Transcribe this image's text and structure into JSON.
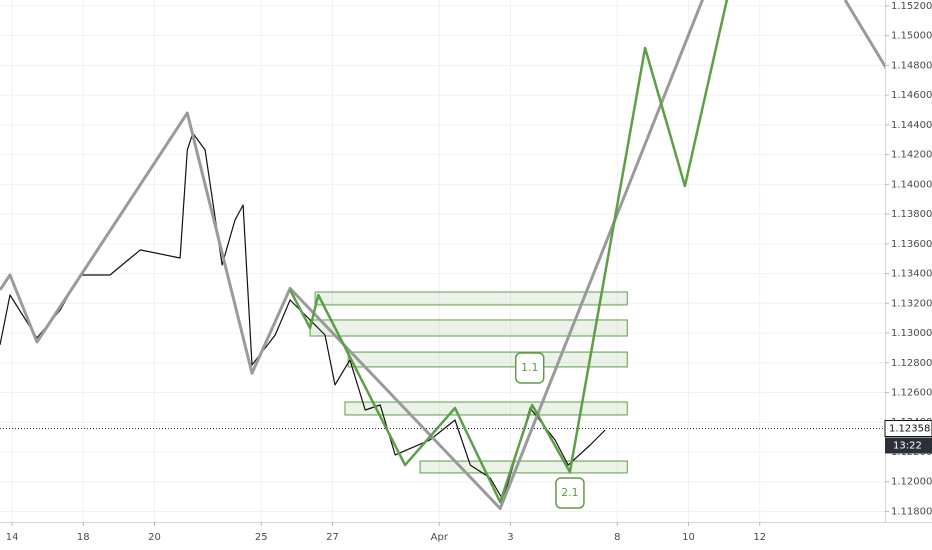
{
  "chart_data": {
    "type": "line",
    "xlim": [
      -0.34,
      24.52
    ],
    "ylim": [
      1.11729,
      1.1524
    ],
    "grid": true,
    "xticks": [
      {
        "value": 0,
        "label": "14"
      },
      {
        "value": 2,
        "label": "18"
      },
      {
        "value": 4,
        "label": "20"
      },
      {
        "value": 7,
        "label": "25"
      },
      {
        "value": 9,
        "label": "27"
      },
      {
        "value": 12,
        "label": "Apr"
      },
      {
        "value": 14,
        "label": "3"
      },
      {
        "value": 17,
        "label": "8"
      },
      {
        "value": 19,
        "label": "10"
      },
      {
        "value": 21,
        "label": "12"
      }
    ],
    "yticks": [
      {
        "value": 1.118,
        "label": "1.11800"
      },
      {
        "value": 1.12,
        "label": "1.12000"
      },
      {
        "value": 1.122,
        "label": "1.12200"
      },
      {
        "value": 1.124,
        "label": "1.12400"
      },
      {
        "value": 1.126,
        "label": "1.12600"
      },
      {
        "value": 1.128,
        "label": "1.12800"
      },
      {
        "value": 1.13,
        "label": "1.13000"
      },
      {
        "value": 1.132,
        "label": "1.13200"
      },
      {
        "value": 1.134,
        "label": "1.13400"
      },
      {
        "value": 1.136,
        "label": "1.13600"
      },
      {
        "value": 1.138,
        "label": "1.13800"
      },
      {
        "value": 1.14,
        "label": "1.14000"
      },
      {
        "value": 1.142,
        "label": "1.14200"
      },
      {
        "value": 1.144,
        "label": "1.14400"
      },
      {
        "value": 1.146,
        "label": "1.14600"
      },
      {
        "value": 1.148,
        "label": "1.14800"
      },
      {
        "value": 1.15,
        "label": "1.15000"
      },
      {
        "value": 1.152,
        "label": "1.15200"
      }
    ],
    "series": [
      {
        "color": "#111111",
        "width": 1.2,
        "x": [
          -0.34,
          -0.06,
          0.7,
          1.35,
          1.91,
          2.75,
          3.6,
          4.72,
          4.92,
          5.08,
          5.42,
          5.9,
          6.26,
          6.49,
          6.74,
          7.39,
          7.81,
          8.37,
          8.79,
          9.07,
          9.49,
          9.92,
          10.34,
          10.76,
          11.74,
          12.44,
          12.87,
          13.43,
          13.79,
          14.55,
          15.25,
          15.62,
          16.24,
          16.66
        ],
        "values": [
          1.1292,
          1.13256,
          1.12967,
          1.13155,
          1.1339,
          1.1339,
          1.13559,
          1.13505,
          1.14231,
          1.14345,
          1.14231,
          1.13458,
          1.1376,
          1.13861,
          1.12785,
          1.12987,
          1.13222,
          1.13088,
          1.12987,
          1.12651,
          1.12819,
          1.12482,
          1.12516,
          1.1218,
          1.12281,
          1.12415,
          1.12112,
          1.12025,
          1.11877,
          1.12496,
          1.12281,
          1.12112,
          1.12247,
          1.12348
        ]
      },
      {
        "color": "#9a9a9a",
        "width": 3,
        "x": [
          -0.34,
          -0.06,
          0.7,
          4.92,
          6.74,
          7.81,
          13.71,
          19.44,
          null,
          23.4,
          24.61
        ],
        "values": [
          1.1329,
          1.1339,
          1.1294,
          1.1448,
          1.1273,
          1.133,
          1.1182,
          1.1527,
          null,
          1.1524,
          1.1476
        ]
      },
      {
        "color": "#5d9e47",
        "width": 2.5,
        "x": [
          7.81,
          8.37,
          8.6,
          11.04,
          12.44,
          13.71,
          14.61,
          15.67,
          17.78,
          18.9,
          20.11
        ],
        "values": [
          1.1329,
          1.13034,
          1.13256,
          1.12112,
          1.12496,
          1.11863,
          1.12516,
          1.12065,
          1.14917,
          1.13989,
          1.15274
        ]
      }
    ],
    "zones": [
      {
        "x": [
          8.51,
          17.28
        ],
        "y": [
          1.13276,
          1.13189
        ]
      },
      {
        "x": [
          8.37,
          17.28
        ],
        "y": [
          1.13088,
          1.1298
        ]
      },
      {
        "x": [
          9.44,
          17.28
        ],
        "y": [
          1.12872,
          1.12772
        ]
      },
      {
        "x": [
          9.35,
          17.28
        ],
        "y": [
          1.12536,
          1.12449
        ]
      },
      {
        "x": [
          11.46,
          17.28
        ],
        "y": [
          1.12139,
          1.12059
        ]
      }
    ],
    "zone_color": "#5d9e47",
    "annotations": [
      {
        "text": "1.1",
        "x": 14.54,
        "y": 1.12765
      },
      {
        "text": "2.1",
        "x": 15.67,
        "y": 1.11924
      }
    ],
    "last_price": 1.12358,
    "countdown": "13:22"
  }
}
